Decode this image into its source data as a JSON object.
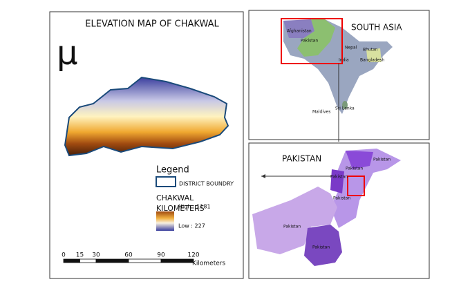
{
  "main_map": {
    "title": "ELEVATION MAP OF CHAKWAL",
    "north_symbol": "μ",
    "legend": {
      "title": "Legend",
      "boundary": "DISTRICT BOUNDRY",
      "layer": "CHAKWAL",
      "unit": "KILOMETERS",
      "high": "High : 1181",
      "low": "Low : 227"
    },
    "scale_bar": {
      "ticks": [
        0,
        15,
        30,
        60,
        90,
        120
      ],
      "unit": "Kilometers"
    }
  },
  "south_asia": {
    "title": "SOUTH ASIA",
    "labels": [
      "Afghanistan",
      "Pakistan",
      "Nepal",
      "Bhutan",
      "India",
      "Bangladesh",
      "Sri Lanka",
      "Maldives"
    ]
  },
  "pakistan": {
    "title": "PAKISTAN",
    "labels": [
      "Pakistan",
      "Pakistan",
      "Pakistan",
      "Pakistan",
      "Pakistan",
      "Pakistan"
    ]
  }
}
